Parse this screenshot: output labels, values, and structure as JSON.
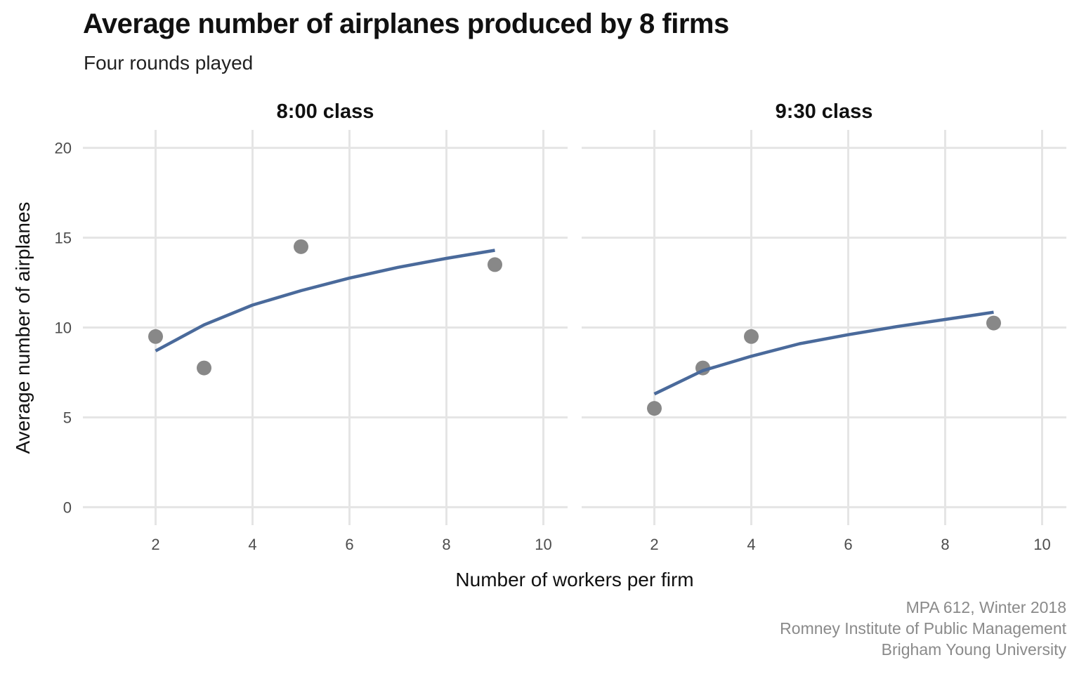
{
  "title": "Average number of airplanes produced by 8 firms",
  "subtitle": "Four rounds played",
  "caption": [
    "MPA 612, Winter 2018",
    "Romney Institute of Public Management",
    "Brigham Young University"
  ],
  "colors": {
    "point": "#888888",
    "line": "#4a6a9b",
    "grid": "#e5e5e5",
    "text": "#111111",
    "caption": "#8a8a8a"
  },
  "chart_data": {
    "type": "scatter",
    "xlabel": "Number of workers per firm",
    "ylabel": "Average number of airplanes",
    "xlim": [
      0.5,
      10.5
    ],
    "ylim": [
      -1,
      21
    ],
    "x_ticks": [
      2,
      4,
      6,
      8,
      10
    ],
    "y_ticks": [
      0,
      5,
      10,
      15,
      20
    ],
    "grid": true,
    "facets": [
      {
        "label": "8:00 class",
        "points": [
          {
            "x": 2,
            "y": 9.5
          },
          {
            "x": 3,
            "y": 7.75
          },
          {
            "x": 5,
            "y": 14.5
          },
          {
            "x": 9,
            "y": 13.5
          }
        ],
        "fit": {
          "type": "log",
          "x": [
            2,
            3,
            4,
            5,
            6,
            7,
            8,
            9
          ],
          "y": [
            8.7,
            10.15,
            11.25,
            12.05,
            12.75,
            13.35,
            13.85,
            14.3
          ]
        }
      },
      {
        "label": "9:30 class",
        "points": [
          {
            "x": 2,
            "y": 5.5
          },
          {
            "x": 3,
            "y": 7.75
          },
          {
            "x": 4,
            "y": 9.5
          },
          {
            "x": 9,
            "y": 10.25
          }
        ],
        "fit": {
          "type": "log",
          "x": [
            2,
            3,
            4,
            5,
            6,
            7,
            8,
            9
          ],
          "y": [
            6.3,
            7.6,
            8.4,
            9.1,
            9.6,
            10.05,
            10.45,
            10.85
          ]
        }
      }
    ]
  }
}
